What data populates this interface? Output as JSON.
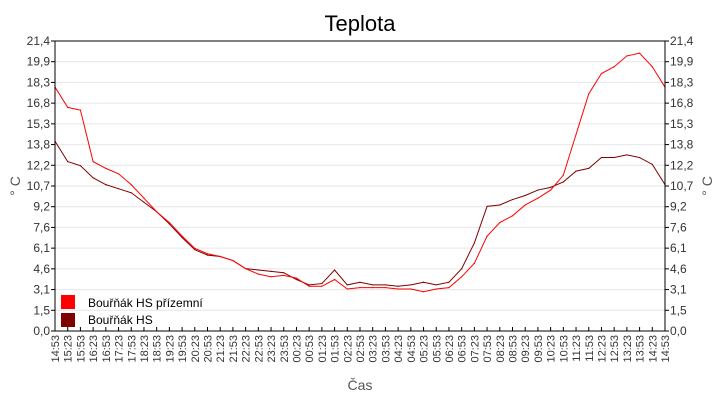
{
  "chart_data": {
    "type": "line",
    "title": "Teplota",
    "xlabel": "Čas",
    "ylabel": "° C",
    "ylim": [
      0,
      21.4
    ],
    "yticks": [
      "0,0",
      "1,5",
      "3,1",
      "4,6",
      "6,1",
      "7,6",
      "9,2",
      "10,7",
      "12,2",
      "13,8",
      "15,3",
      "16,8",
      "18,3",
      "19,9",
      "21,4"
    ],
    "grid": true,
    "legend_position": "bottom-left",
    "x": [
      "14:53",
      "15:23",
      "15:53",
      "16:23",
      "16:53",
      "17:23",
      "17:53",
      "18:23",
      "18:53",
      "19:23",
      "19:53",
      "20:23",
      "20:53",
      "21:23",
      "21:53",
      "22:23",
      "22:53",
      "23:23",
      "23:53",
      "00:23",
      "00:53",
      "01:23",
      "01:53",
      "02:23",
      "02:53",
      "03:23",
      "03:53",
      "04:23",
      "04:53",
      "05:23",
      "05:53",
      "06:23",
      "06:53",
      "07:23",
      "07:53",
      "08:23",
      "08:53",
      "09:23",
      "09:53",
      "10:23",
      "10:53",
      "11:23",
      "11:53",
      "12:23",
      "12:53",
      "13:23",
      "13:53",
      "14:23",
      "14:53"
    ],
    "series": [
      {
        "name": "Bouřňák HS přízemní",
        "color": "#ff0000",
        "values": [
          18.0,
          16.5,
          16.3,
          12.5,
          12.0,
          11.6,
          10.8,
          9.8,
          8.8,
          8.0,
          7.0,
          6.1,
          5.7,
          5.5,
          5.2,
          4.6,
          4.2,
          4.0,
          4.1,
          3.9,
          3.3,
          3.3,
          3.8,
          3.1,
          3.2,
          3.2,
          3.2,
          3.1,
          3.1,
          2.9,
          3.1,
          3.2,
          4.0,
          5.0,
          7.0,
          8.0,
          8.5,
          9.3,
          9.8,
          10.4,
          11.5,
          14.5,
          17.5,
          19.0,
          19.5,
          20.3,
          20.5,
          19.5,
          18.0
        ]
      },
      {
        "name": "Bouřňák HS",
        "color": "#800000",
        "values": [
          14.0,
          12.5,
          12.2,
          11.3,
          10.8,
          10.5,
          10.2,
          9.5,
          8.8,
          7.9,
          6.9,
          6.0,
          5.6,
          5.5,
          5.2,
          4.6,
          4.5,
          4.4,
          4.3,
          3.8,
          3.4,
          3.5,
          4.5,
          3.4,
          3.6,
          3.4,
          3.4,
          3.3,
          3.4,
          3.6,
          3.4,
          3.6,
          4.6,
          6.5,
          9.2,
          9.3,
          9.7,
          10.0,
          10.4,
          10.6,
          11.0,
          11.8,
          12.0,
          12.8,
          12.8,
          13.0,
          12.8,
          12.3,
          10.8
        ]
      }
    ]
  }
}
